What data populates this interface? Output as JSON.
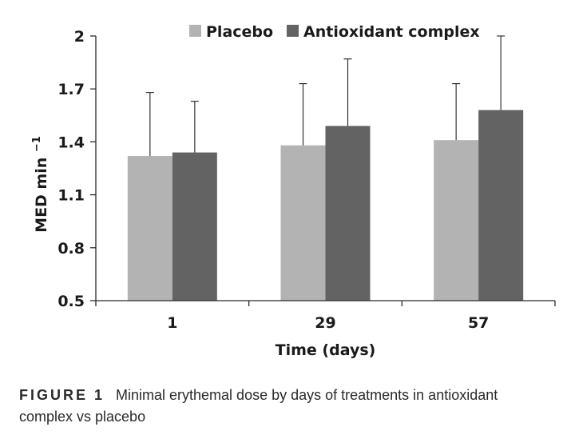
{
  "caption": {
    "label": "FIGURE 1",
    "text": "Minimal erythemal dose by days of treatments in antioxidant complex vs placebo"
  },
  "chart_data": {
    "type": "bar",
    "categories": [
      "1",
      "29",
      "57"
    ],
    "series": [
      {
        "name": "Placebo",
        "color": "#b3b3b3",
        "values": [
          1.32,
          1.38,
          1.41
        ],
        "error_upper": [
          0.36,
          0.35,
          0.32
        ]
      },
      {
        "name": "Antioxidant complex",
        "color": "#636363",
        "values": [
          1.34,
          1.49,
          1.58
        ],
        "error_upper": [
          0.29,
          0.38,
          0.42
        ]
      }
    ],
    "title": "",
    "xlabel": "Time (days)",
    "ylabel": "MED min",
    "ylabel_superscript": "−1",
    "ylim": [
      0.5,
      2
    ],
    "yticks": [
      "0.5",
      "0.8",
      "1.1",
      "1.4",
      "1.7",
      "2"
    ],
    "grid": false,
    "legend_position": "top-center"
  }
}
